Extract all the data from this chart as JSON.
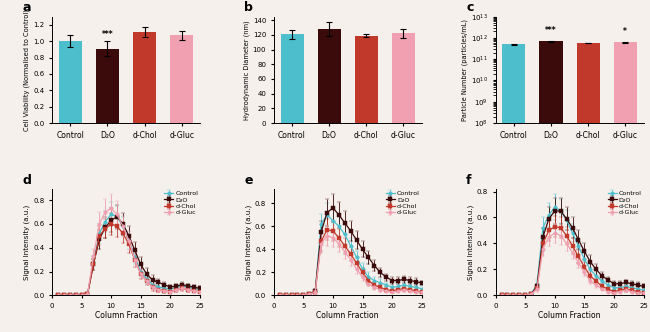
{
  "colors": {
    "control": "#4DBFCC",
    "d2o": "#3B0A0A",
    "dchol": "#C0392B",
    "dgluc": "#F0A0B0"
  },
  "bar_labels": [
    "Control",
    "D₂O",
    "d-Chol",
    "d-Gluc"
  ],
  "panel_a": {
    "values": [
      1.0,
      0.91,
      1.11,
      1.07
    ],
    "errors": [
      0.07,
      0.09,
      0.06,
      0.05
    ],
    "ylabel": "Cell Viability (Normalised to Control)",
    "ylim": [
      0,
      1.3
    ],
    "yticks": [
      0.0,
      0.2,
      0.4,
      0.6,
      0.8,
      1.0,
      1.2
    ],
    "sig_labels": [
      "",
      "***",
      "",
      ""
    ]
  },
  "panel_b": {
    "values": [
      121,
      128,
      119,
      122
    ],
    "errors": [
      6,
      9,
      2,
      6
    ],
    "ylabel": "Hydrodynamic Diameter (nm)",
    "ylim": [
      0,
      145
    ],
    "yticks": [
      0,
      20,
      40,
      60,
      80,
      100,
      120,
      140
    ],
    "sig_labels": [
      "",
      "",
      "",
      ""
    ]
  },
  "panel_c": {
    "values": [
      500000000000.0,
      680000000000.0,
      580000000000.0,
      620000000000.0
    ],
    "errors": [
      20000000000.0,
      20000000000.0,
      20000000000.0,
      20000000000.0
    ],
    "ylabel": "Particle Number (particles/mL)",
    "ylim_log": [
      100000000.0,
      10000000000000.0
    ],
    "yticks_log": [
      100000000.0,
      1000000000.0,
      10000000000.0,
      100000000000.0,
      1000000000000.0
    ],
    "sig_labels": [
      "",
      "***",
      "",
      "*"
    ]
  },
  "fractions": [
    1,
    2,
    3,
    4,
    5,
    6,
    7,
    8,
    9,
    10,
    11,
    12,
    13,
    14,
    15,
    16,
    17,
    18,
    19,
    20,
    21,
    22,
    23,
    24,
    25
  ],
  "panel_d": {
    "control": [
      0,
      0,
      0,
      0,
      0,
      0.01,
      0.28,
      0.52,
      0.62,
      0.68,
      0.66,
      0.58,
      0.46,
      0.32,
      0.2,
      0.14,
      0.09,
      0.07,
      0.06,
      0.05,
      0.07,
      0.08,
      0.07,
      0.06,
      0.05
    ],
    "d2o": [
      0,
      0,
      0,
      0,
      0,
      0.01,
      0.26,
      0.47,
      0.57,
      0.63,
      0.66,
      0.6,
      0.5,
      0.38,
      0.26,
      0.18,
      0.13,
      0.11,
      0.09,
      0.07,
      0.08,
      0.09,
      0.08,
      0.07,
      0.06
    ],
    "dchol": [
      0,
      0,
      0,
      0,
      0,
      0.01,
      0.26,
      0.5,
      0.56,
      0.6,
      0.58,
      0.52,
      0.43,
      0.3,
      0.18,
      0.12,
      0.07,
      0.05,
      0.04,
      0.03,
      0.05,
      0.06,
      0.05,
      0.04,
      0.03
    ],
    "dgluc": [
      0,
      0,
      0,
      0,
      0,
      0.01,
      0.33,
      0.6,
      0.7,
      0.73,
      0.68,
      0.58,
      0.46,
      0.3,
      0.18,
      0.12,
      0.07,
      0.05,
      0.04,
      0.03,
      0.05,
      0.06,
      0.05,
      0.04,
      0.03
    ],
    "control_err": [
      0,
      0,
      0,
      0,
      0,
      0.01,
      0.05,
      0.08,
      0.09,
      0.1,
      0.09,
      0.08,
      0.07,
      0.06,
      0.05,
      0.04,
      0.03,
      0.02,
      0.02,
      0.02,
      0.02,
      0.02,
      0.02,
      0.02,
      0.02
    ],
    "d2o_err": [
      0,
      0,
      0,
      0,
      0,
      0.01,
      0.05,
      0.08,
      0.09,
      0.1,
      0.1,
      0.09,
      0.08,
      0.07,
      0.06,
      0.05,
      0.04,
      0.03,
      0.02,
      0.02,
      0.02,
      0.02,
      0.02,
      0.02,
      0.02
    ],
    "dchol_err": [
      0,
      0,
      0,
      0,
      0,
      0.01,
      0.05,
      0.08,
      0.08,
      0.09,
      0.09,
      0.08,
      0.07,
      0.06,
      0.04,
      0.03,
      0.03,
      0.02,
      0.02,
      0.01,
      0.02,
      0.02,
      0.02,
      0.01,
      0.01
    ],
    "dgluc_err": [
      0,
      0,
      0,
      0,
      0,
      0.01,
      0.06,
      0.1,
      0.11,
      0.12,
      0.11,
      0.09,
      0.08,
      0.06,
      0.04,
      0.03,
      0.02,
      0.02,
      0.01,
      0.01,
      0.02,
      0.02,
      0.02,
      0.01,
      0.01
    ]
  },
  "panel_e": {
    "control": [
      0,
      0,
      0,
      0,
      0,
      0.01,
      0.04,
      0.62,
      0.7,
      0.65,
      0.6,
      0.53,
      0.43,
      0.33,
      0.23,
      0.16,
      0.13,
      0.11,
      0.09,
      0.07,
      0.08,
      0.09,
      0.08,
      0.07,
      0.06
    ],
    "d2o": [
      0,
      0,
      0,
      0,
      0,
      0.01,
      0.04,
      0.55,
      0.72,
      0.76,
      0.7,
      0.63,
      0.56,
      0.48,
      0.4,
      0.33,
      0.26,
      0.2,
      0.16,
      0.13,
      0.13,
      0.14,
      0.13,
      0.12,
      0.11
    ],
    "dchol": [
      0,
      0,
      0,
      0,
      0,
      0.01,
      0.03,
      0.47,
      0.57,
      0.56,
      0.5,
      0.43,
      0.36,
      0.28,
      0.2,
      0.13,
      0.09,
      0.07,
      0.05,
      0.04,
      0.05,
      0.06,
      0.05,
      0.04,
      0.03
    ],
    "dgluc": [
      0,
      0,
      0,
      0,
      0,
      0.01,
      0.03,
      0.45,
      0.52,
      0.5,
      0.45,
      0.38,
      0.31,
      0.23,
      0.16,
      0.1,
      0.07,
      0.05,
      0.04,
      0.03,
      0.04,
      0.05,
      0.04,
      0.03,
      0.03
    ],
    "control_err": [
      0,
      0,
      0,
      0,
      0,
      0.01,
      0.02,
      0.09,
      0.1,
      0.1,
      0.09,
      0.08,
      0.07,
      0.06,
      0.05,
      0.04,
      0.03,
      0.03,
      0.02,
      0.02,
      0.02,
      0.02,
      0.02,
      0.02,
      0.02
    ],
    "d2o_err": [
      0,
      0,
      0,
      0,
      0,
      0.01,
      0.02,
      0.1,
      0.12,
      0.12,
      0.11,
      0.1,
      0.09,
      0.08,
      0.07,
      0.06,
      0.05,
      0.04,
      0.03,
      0.03,
      0.03,
      0.03,
      0.03,
      0.03,
      0.02
    ],
    "dchol_err": [
      0,
      0,
      0,
      0,
      0,
      0.01,
      0.02,
      0.08,
      0.09,
      0.09,
      0.08,
      0.07,
      0.06,
      0.05,
      0.04,
      0.03,
      0.03,
      0.02,
      0.02,
      0.01,
      0.02,
      0.02,
      0.02,
      0.01,
      0.01
    ],
    "dgluc_err": [
      0,
      0,
      0,
      0,
      0,
      0.01,
      0.02,
      0.08,
      0.09,
      0.08,
      0.07,
      0.06,
      0.05,
      0.04,
      0.03,
      0.02,
      0.02,
      0.02,
      0.01,
      0.01,
      0.01,
      0.02,
      0.01,
      0.01,
      0.01
    ]
  },
  "panel_f": {
    "control": [
      0,
      0,
      0,
      0,
      0,
      0.01,
      0.09,
      0.52,
      0.62,
      0.68,
      0.65,
      0.58,
      0.48,
      0.38,
      0.28,
      0.2,
      0.15,
      0.11,
      0.08,
      0.06,
      0.06,
      0.07,
      0.06,
      0.05,
      0.04
    ],
    "d2o": [
      0,
      0,
      0,
      0,
      0,
      0.01,
      0.07,
      0.45,
      0.59,
      0.65,
      0.65,
      0.59,
      0.52,
      0.43,
      0.34,
      0.26,
      0.2,
      0.15,
      0.12,
      0.09,
      0.09,
      0.1,
      0.09,
      0.08,
      0.07
    ],
    "dchol": [
      0,
      0,
      0,
      0,
      0,
      0.01,
      0.06,
      0.4,
      0.5,
      0.53,
      0.52,
      0.46,
      0.38,
      0.3,
      0.22,
      0.15,
      0.11,
      0.07,
      0.05,
      0.03,
      0.04,
      0.05,
      0.04,
      0.03,
      0.02
    ],
    "dgluc": [
      0,
      0,
      0,
      0,
      0,
      0.01,
      0.05,
      0.36,
      0.45,
      0.48,
      0.46,
      0.4,
      0.33,
      0.25,
      0.18,
      0.11,
      0.08,
      0.05,
      0.03,
      0.02,
      0.03,
      0.04,
      0.03,
      0.02,
      0.02
    ],
    "control_err": [
      0,
      0,
      0,
      0,
      0,
      0.01,
      0.03,
      0.08,
      0.09,
      0.1,
      0.09,
      0.08,
      0.07,
      0.06,
      0.05,
      0.04,
      0.03,
      0.02,
      0.02,
      0.02,
      0.02,
      0.02,
      0.02,
      0.02,
      0.01
    ],
    "d2o_err": [
      0,
      0,
      0,
      0,
      0,
      0.01,
      0.02,
      0.07,
      0.09,
      0.1,
      0.1,
      0.09,
      0.08,
      0.07,
      0.06,
      0.05,
      0.04,
      0.03,
      0.02,
      0.02,
      0.02,
      0.02,
      0.02,
      0.02,
      0.02
    ],
    "dchol_err": [
      0,
      0,
      0,
      0,
      0,
      0.01,
      0.02,
      0.06,
      0.08,
      0.08,
      0.08,
      0.07,
      0.06,
      0.05,
      0.04,
      0.03,
      0.02,
      0.02,
      0.01,
      0.01,
      0.01,
      0.02,
      0.01,
      0.01,
      0.01
    ],
    "dgluc_err": [
      0,
      0,
      0,
      0,
      0,
      0.01,
      0.02,
      0.06,
      0.07,
      0.08,
      0.07,
      0.06,
      0.05,
      0.04,
      0.03,
      0.02,
      0.02,
      0.01,
      0.01,
      0.01,
      0.01,
      0.01,
      0.01,
      0.01,
      0.01
    ]
  },
  "legend_labels": [
    "Control",
    "D₂O",
    "d-Chol",
    "d-Gluc"
  ],
  "line_xlabel": "Column Fraction",
  "line_ylabel": "Signal Intensity (a.u.)",
  "bg_color": "#F5F0EC"
}
